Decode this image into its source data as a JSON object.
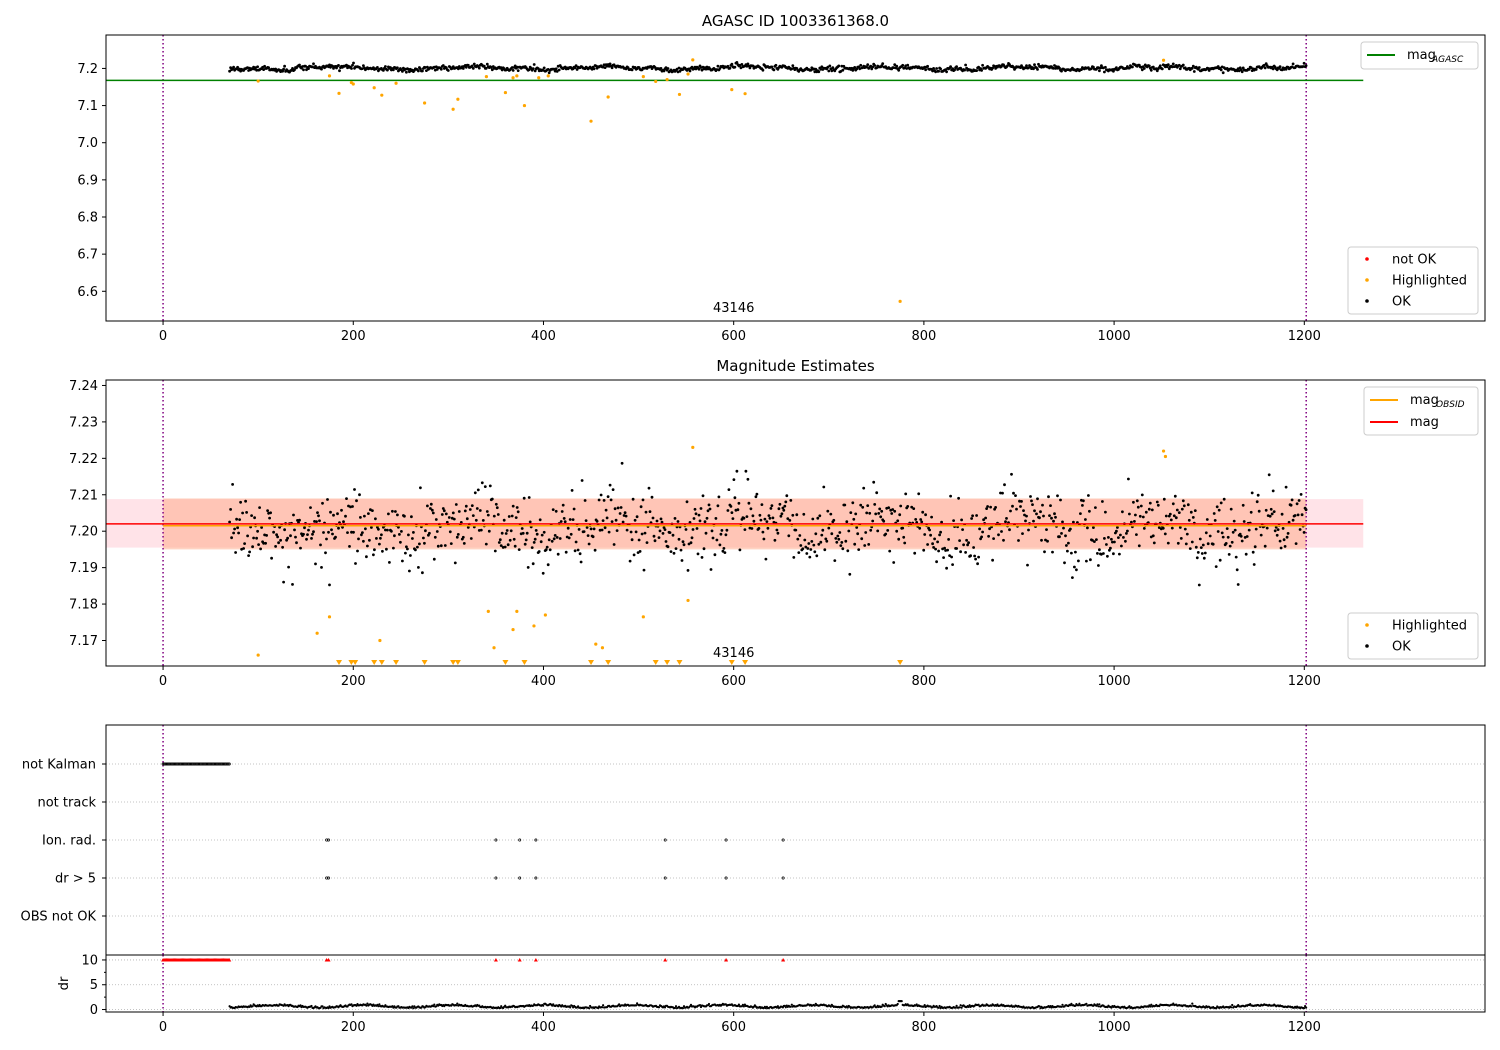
{
  "figure": {
    "colors": {
      "ok": "#000000",
      "highlighted": "#ffa500",
      "not_ok": "#ff0000",
      "agasc_line": "#008000",
      "mag_line": "#ff0000",
      "mag_obsid_line": "#ffa500",
      "band_inner": "#ffa07a",
      "band_outer": "#ffc0cb",
      "vline": "#800080"
    }
  },
  "chart_data": [
    {
      "type": "scatter",
      "title": "AGASC ID 1003361368.0",
      "xlim": [
        -60,
        1390
      ],
      "ylim": [
        6.52,
        7.29
      ],
      "xticks": [
        0,
        200,
        400,
        600,
        800,
        1000,
        1200
      ],
      "yticks": [
        6.6,
        6.7,
        6.8,
        6.9,
        7.0,
        7.1,
        7.2
      ],
      "ytick_labels": [
        "6.6",
        "6.7",
        "6.8",
        "6.9",
        "7.0",
        "7.1",
        "7.2"
      ],
      "vlines": [
        0,
        1202
      ],
      "hlines": [
        {
          "y": 7.168,
          "x_end": 1262
        }
      ],
      "obsid_label": {
        "text": "43146",
        "x": 600
      },
      "ok_series": {
        "x_start": 70,
        "x_end": 1202,
        "level": 7.201
      },
      "highlighted": {
        "x": [
          100,
          175,
          185,
          198,
          200,
          222,
          230,
          245,
          275,
          305,
          310,
          340,
          360,
          368,
          372,
          380,
          395,
          405,
          450,
          468,
          505,
          518,
          530,
          543,
          552,
          557,
          598,
          612,
          775,
          1052
        ],
        "y": [
          7.166,
          7.18,
          7.133,
          7.162,
          7.158,
          7.148,
          7.128,
          7.16,
          7.107,
          7.09,
          7.117,
          7.178,
          7.135,
          7.175,
          7.18,
          7.1,
          7.175,
          7.18,
          7.058,
          7.123,
          7.178,
          7.165,
          7.17,
          7.13,
          7.185,
          7.223,
          7.143,
          7.132,
          6.573,
          7.222
        ]
      },
      "legend_top": [
        "mag"
      ],
      "legend_top_sub": [
        "AGASC"
      ],
      "legend_bottom": [
        "not OK",
        "Highlighted",
        "OK"
      ]
    },
    {
      "type": "scatter",
      "title": "Magnitude Estimates",
      "xlim": [
        -60,
        1390
      ],
      "ylim": [
        7.163,
        7.2415
      ],
      "xticks": [
        0,
        200,
        400,
        600,
        800,
        1000,
        1200
      ],
      "yticks": [
        7.17,
        7.18,
        7.19,
        7.2,
        7.21,
        7.22,
        7.23,
        7.24
      ],
      "ytick_labels": [
        "7.17",
        "7.18",
        "7.19",
        "7.20",
        "7.21",
        "7.22",
        "7.23",
        "7.24"
      ],
      "vlines": [
        0,
        1202
      ],
      "mag": 7.202,
      "mag_obsid": 7.2015,
      "band_inner": [
        7.195,
        7.209
      ],
      "band_inner_x": [
        0,
        1202
      ],
      "band_outer": [
        7.1955,
        7.2088
      ],
      "band_outer_x": [
        -60,
        1262
      ],
      "obsid_label": {
        "text": "43146",
        "x": 600
      },
      "ok_series": {
        "x_start": 70,
        "x_end": 1202,
        "level": 7.201
      },
      "highlighted": {
        "x": [
          100,
          162,
          175,
          228,
          342,
          348,
          368,
          372,
          390,
          402,
          455,
          462,
          505,
          552,
          557,
          1052,
          1054
        ],
        "y": [
          7.166,
          7.172,
          7.1765,
          7.17,
          7.178,
          7.168,
          7.173,
          7.178,
          7.174,
          7.177,
          7.169,
          7.168,
          7.1765,
          7.181,
          7.223,
          7.222,
          7.2205
        ]
      },
      "below_markers": [
        185,
        198,
        202,
        222,
        230,
        245,
        275,
        305,
        310,
        360,
        380,
        450,
        468,
        518,
        530,
        543,
        598,
        612,
        775
      ],
      "legend_top": [
        "mag",
        "mag"
      ],
      "legend_top_sub": [
        "OBSID",
        ""
      ],
      "legend_bottom": [
        "Highlighted",
        "OK"
      ]
    },
    {
      "type": "scatter",
      "xlim": [
        -60,
        1390
      ],
      "categories": [
        "not Kalman",
        "not track",
        "Ion. rad.",
        "dr > 5",
        "OBS not OK"
      ],
      "vlines": [
        0,
        1202
      ],
      "not_kalman_range": [
        0,
        70
      ],
      "events_x": [
        172,
        174,
        350,
        375,
        392,
        528,
        592,
        652
      ]
    },
    {
      "type": "scatter",
      "xlim": [
        -60,
        1390
      ],
      "ylim": [
        -0.5,
        11
      ],
      "ylabel": "dr",
      "yticks": [
        0,
        5,
        10
      ],
      "ytick_labels": [
        "0",
        "5",
        "10"
      ],
      "xticks": [
        0,
        200,
        400,
        600,
        800,
        1000,
        1200
      ],
      "vlines": [
        0,
        1202
      ],
      "clipped_range": [
        0,
        70
      ],
      "clipped_x": [
        172,
        174,
        350,
        375,
        392,
        528,
        592,
        652
      ],
      "clip_value": 10,
      "ok_series": {
        "x_start": 70,
        "x_end": 1202,
        "level": 0.5
      }
    }
  ]
}
